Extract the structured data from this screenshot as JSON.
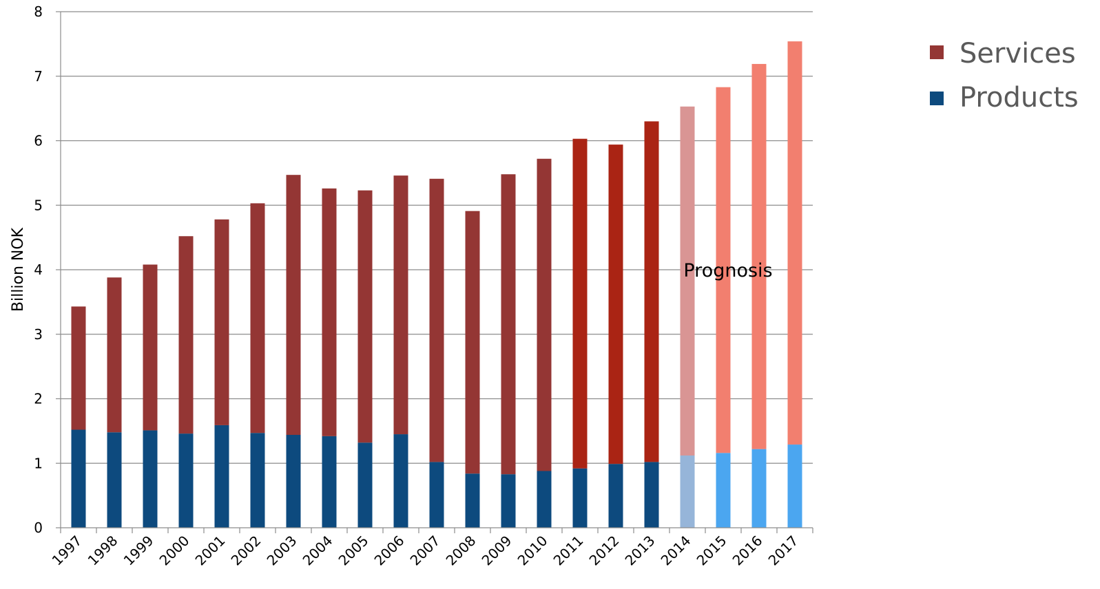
{
  "chart_data": {
    "type": "bar",
    "stacked": true,
    "title": "",
    "xlabel": "",
    "ylabel": "Billion NOK",
    "ylim": [
      0,
      8
    ],
    "yticks": [
      0,
      1,
      2,
      3,
      4,
      5,
      6,
      7,
      8
    ],
    "grid": true,
    "legend_position": "top-right",
    "categories": [
      "1997",
      "1998",
      "1999",
      "2000",
      "2001",
      "2002",
      "2003",
      "2004",
      "2005",
      "2006",
      "2007",
      "2008",
      "2009",
      "2010",
      "2011",
      "2012",
      "2013",
      "2014",
      "2015",
      "2016",
      "2017"
    ],
    "series": [
      {
        "name": "Products",
        "color": "#0d4a7e",
        "values": [
          1.52,
          1.48,
          1.51,
          1.46,
          1.59,
          1.47,
          1.44,
          1.42,
          1.32,
          1.45,
          1.02,
          0.84,
          0.83,
          0.88,
          0.92,
          0.99,
          1.02,
          1.12,
          1.16,
          1.22,
          1.29
        ],
        "point_colors": [
          "#0d4a7e",
          "#0d4a7e",
          "#0d4a7e",
          "#0d4a7e",
          "#0d4a7e",
          "#0d4a7e",
          "#0d4a7e",
          "#0d4a7e",
          "#0d4a7e",
          "#0d4a7e",
          "#0d4a7e",
          "#0d4a7e",
          "#0d4a7e",
          "#0d4a7e",
          "#0d4a7e",
          "#0d4a7e",
          "#0d4a7e",
          "#96b5d9",
          "#4ba6f0",
          "#4ba6f0",
          "#4ba6f0"
        ]
      },
      {
        "name": "Services",
        "color": "#943634",
        "values": [
          1.91,
          2.4,
          2.57,
          3.06,
          3.19,
          3.56,
          4.03,
          3.84,
          3.91,
          4.01,
          4.39,
          4.07,
          4.65,
          4.84,
          5.11,
          4.95,
          5.28,
          5.41,
          5.67,
          5.97,
          6.25
        ],
        "point_colors": [
          "#943634",
          "#943634",
          "#943634",
          "#943634",
          "#943634",
          "#943634",
          "#943634",
          "#943634",
          "#943634",
          "#943634",
          "#943634",
          "#943634",
          "#943634",
          "#943634",
          "#aa2414",
          "#aa2414",
          "#aa2414",
          "#d99594",
          "#f27f6f",
          "#f27f6f",
          "#f27f6f"
        ]
      }
    ],
    "annotations": [
      {
        "text": "Prognosis",
        "category": "2015",
        "y": 4.0
      }
    ]
  }
}
